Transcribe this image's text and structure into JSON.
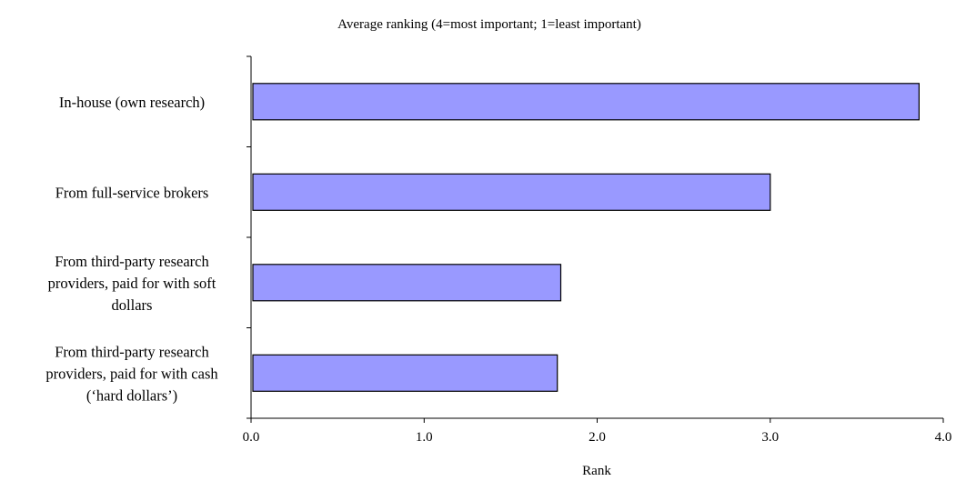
{
  "chart_data": {
    "type": "bar",
    "orientation": "horizontal",
    "title": "Average ranking (4=most important; 1=least important)",
    "xlabel": "Rank",
    "ylabel": "",
    "xlim": [
      0,
      4
    ],
    "x_ticks": [
      "0.0",
      "1.0",
      "2.0",
      "3.0",
      "4.0"
    ],
    "grid": false,
    "legend": "none",
    "bar_color": "#9999ff",
    "bar_edge_color": "#000000",
    "categories": [
      "In-house (own research)",
      "From full-service brokers",
      "From third-party research providers, paid for with soft dollars",
      "From third-party research providers, paid for with cash (‘hard dollars’)"
    ],
    "category_label_lines": [
      [
        "In-house (own research)"
      ],
      [
        "From full-service brokers"
      ],
      [
        "From third-party research",
        "providers, paid for with soft",
        "dollars"
      ],
      [
        "From third-party research",
        "providers, paid for with cash",
        "(‘hard dollars’)"
      ]
    ],
    "values": [
      3.86,
      3.0,
      1.79,
      1.77
    ]
  }
}
